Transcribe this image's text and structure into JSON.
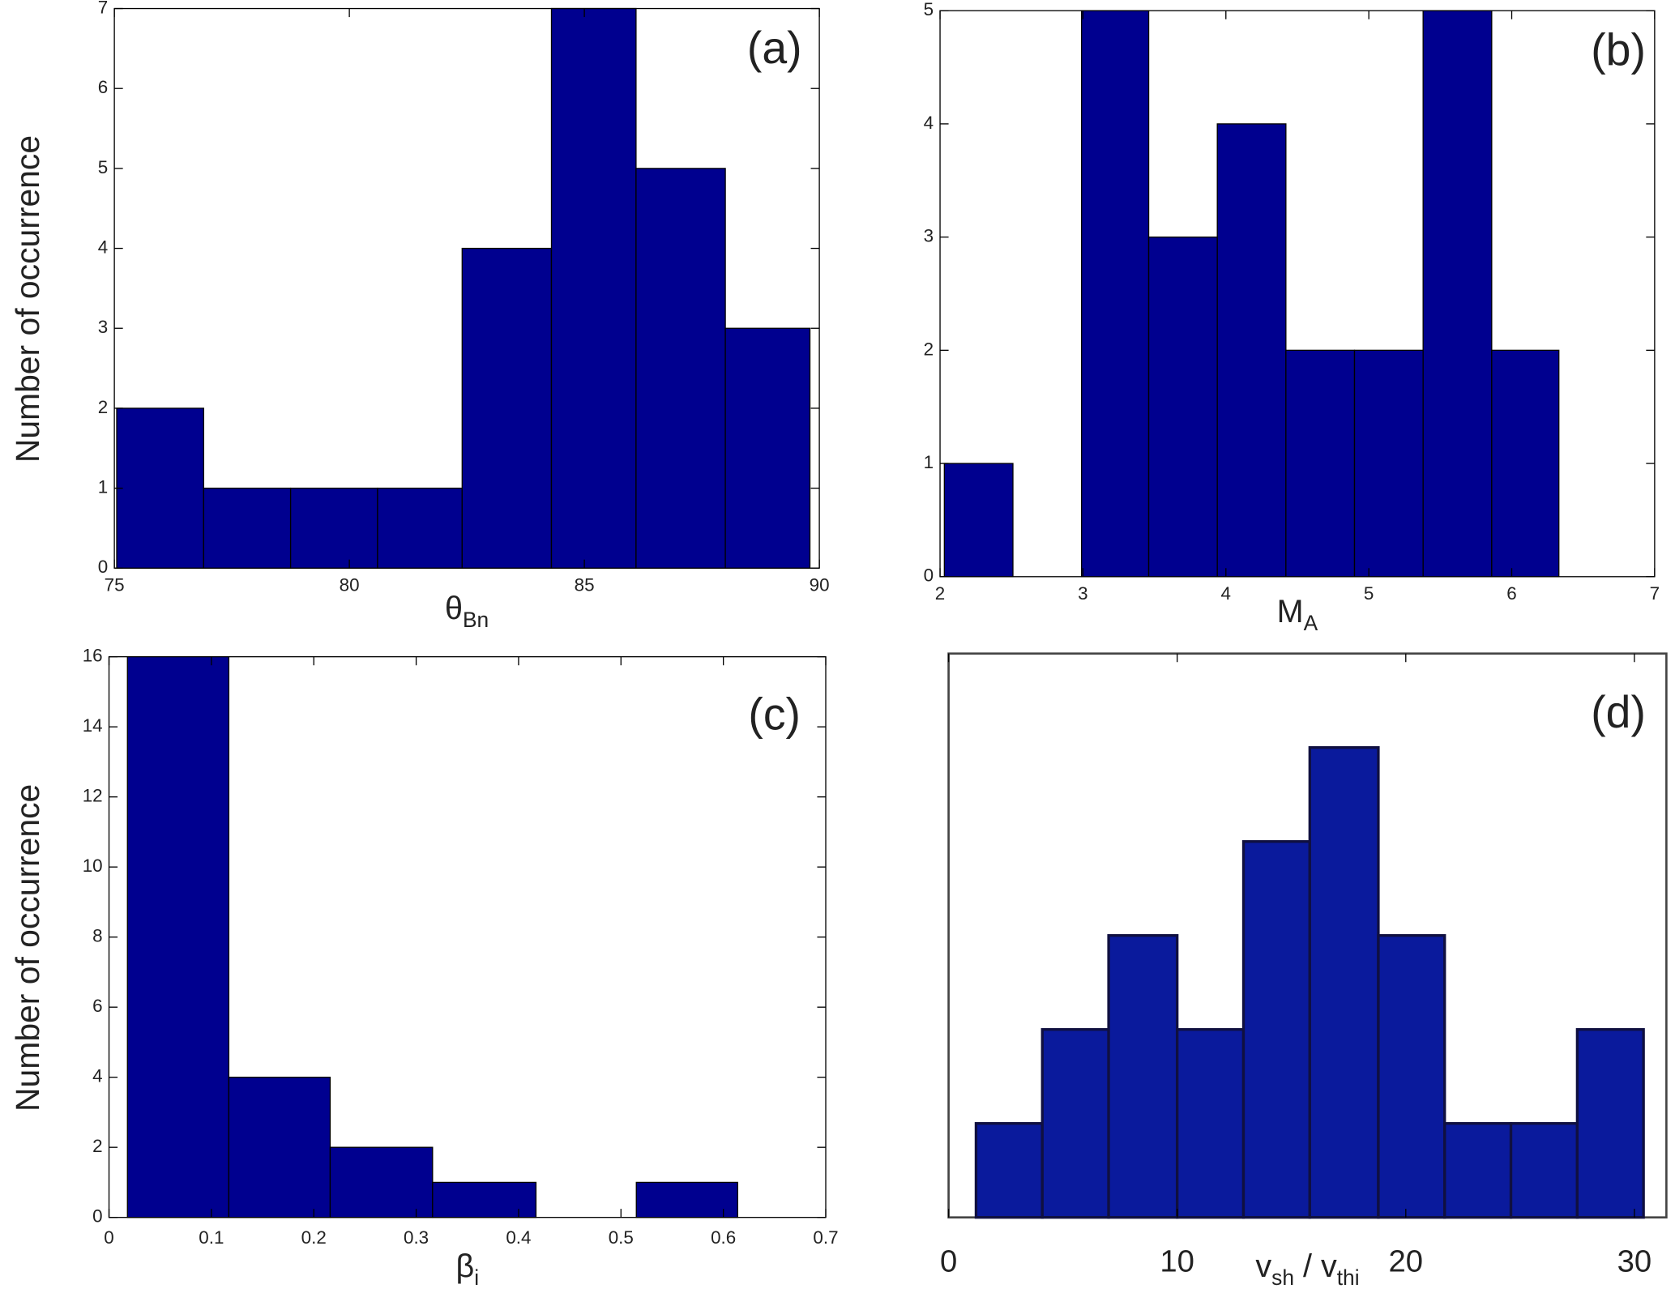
{
  "chart_data": [
    {
      "type": "histogram",
      "label": "(a)",
      "ylabel": "Number of occurrence",
      "xlabel": [
        {
          "text": "θ"
        },
        {
          "text": "Bn",
          "sub": true
        }
      ],
      "bins": [
        75.05,
        76.9,
        78.75,
        80.6,
        82.4,
        84.3,
        86.1,
        88.0,
        89.8
      ],
      "values": [
        2,
        1,
        1,
        1,
        4,
        7,
        5,
        3
      ],
      "color": "#00008f",
      "xlim": [
        75,
        90
      ],
      "ylim": [
        0,
        7
      ],
      "xticks": [
        75,
        80,
        85,
        90
      ],
      "yticks": [
        0,
        1,
        2,
        3,
        4,
        5,
        6,
        7
      ]
    },
    {
      "type": "histogram",
      "label": "(b)",
      "xlabel": [
        {
          "text": "M"
        },
        {
          "text": "A",
          "sub": true
        }
      ],
      "bins": [
        2.03,
        2.51,
        2.99,
        3.46,
        3.94,
        4.42,
        4.9,
        5.38,
        5.86,
        6.33
      ],
      "values": [
        1,
        0,
        5,
        3,
        4,
        2,
        2,
        5,
        2
      ],
      "color": "#00008f",
      "xlim": [
        2,
        7
      ],
      "ylim": [
        0,
        5
      ],
      "xticks": [
        2,
        3,
        4,
        5,
        6,
        7
      ],
      "yticks": [
        0,
        1,
        2,
        3,
        4,
        5
      ]
    },
    {
      "type": "histogram",
      "label": "(c)",
      "ylabel": "Number of occurrence",
      "xlabel": [
        {
          "text": "β"
        },
        {
          "text": "i",
          "sub": true
        }
      ],
      "bins": [
        0.018,
        0.117,
        0.216,
        0.316,
        0.417,
        0.515,
        0.614
      ],
      "values": [
        16,
        4,
        2,
        1,
        0,
        1
      ],
      "color": "#00008f",
      "xlim": [
        0,
        0.7
      ],
      "ylim": [
        0,
        16
      ],
      "xticks": [
        0,
        0.1,
        0.2,
        0.3,
        0.4,
        0.5,
        0.6,
        0.7
      ],
      "yticks": [
        0,
        2,
        4,
        6,
        8,
        10,
        12,
        14,
        16
      ]
    },
    {
      "type": "histogram",
      "label": "(d)",
      "xlabel": [
        {
          "text": "v"
        },
        {
          "text": "sh",
          "sub": true
        },
        {
          "text": " / v"
        },
        {
          "text": "thi",
          "sub": true
        }
      ],
      "bins": [
        1.2,
        4.1,
        7.0,
        10.0,
        12.9,
        15.8,
        18.8,
        21.7,
        24.6,
        27.5,
        30.4
      ],
      "values": [
        1,
        2,
        3,
        2,
        4,
        5,
        3,
        1,
        1,
        2
      ],
      "color": "#0a1a9c",
      "xlim": [
        0,
        31.4
      ],
      "ylim": [
        0,
        6
      ],
      "xticks": [
        0,
        10,
        20,
        30
      ]
    }
  ]
}
